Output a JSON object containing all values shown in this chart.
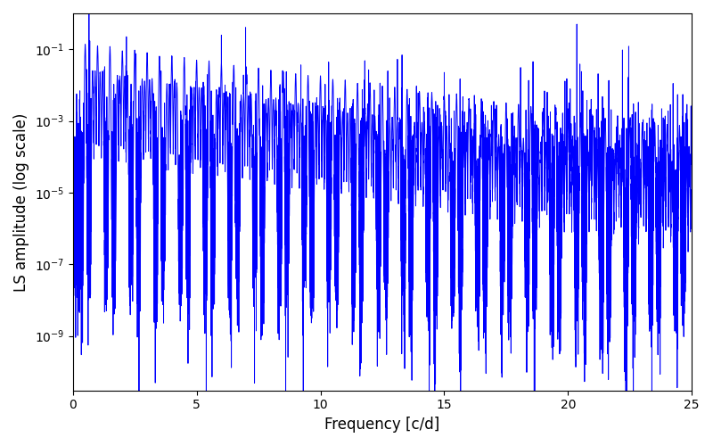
{
  "xlabel": "Frequency [c/d]",
  "ylabel": "LS amplitude (log scale)",
  "line_color": "#0000ff",
  "line_width": 0.7,
  "xlim": [
    0,
    25
  ],
  "ylim": [
    3e-11,
    1.0
  ],
  "figsize": [
    8.0,
    5.0
  ],
  "dpi": 100,
  "freq_max": 25.0,
  "n_points": 15000,
  "seed": 12345
}
